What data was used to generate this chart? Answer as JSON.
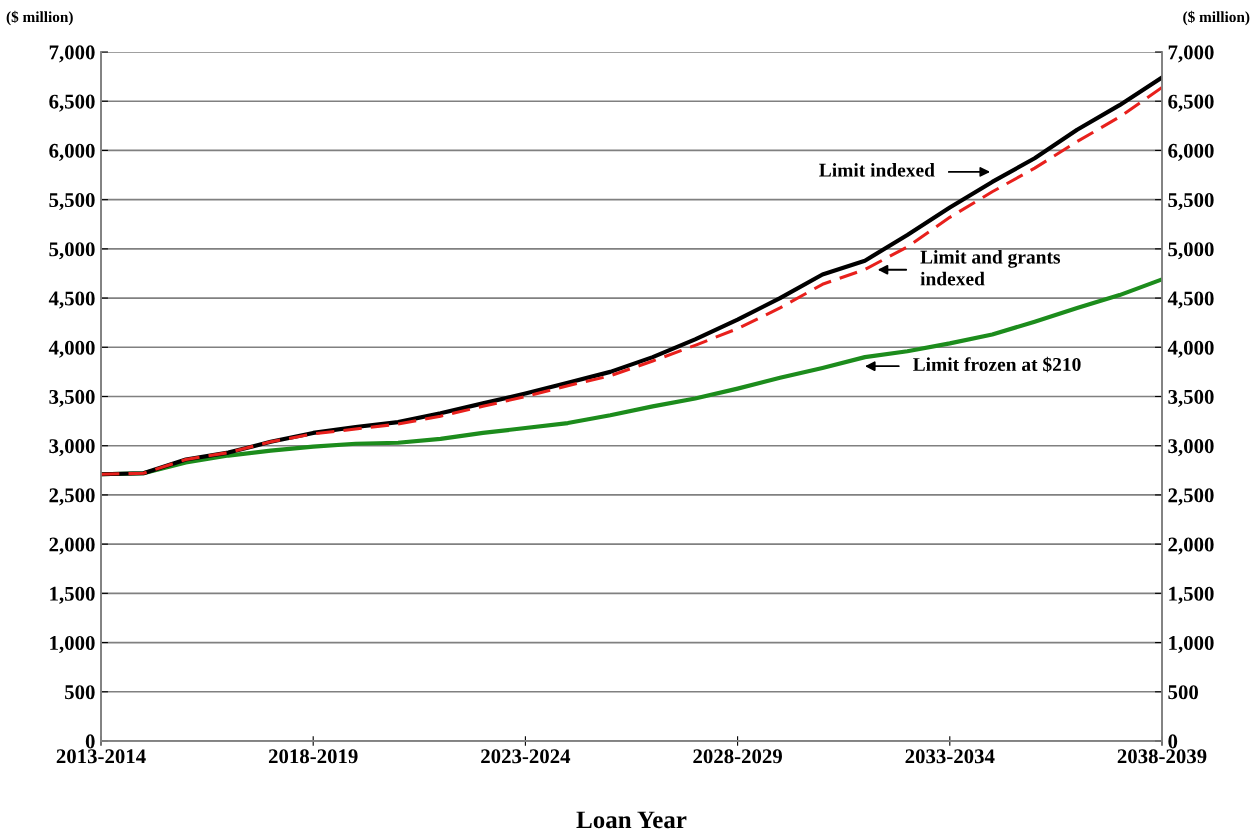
{
  "chart_data": {
    "type": "line",
    "xlabel": "Loan Year",
    "ylabel": "($ million)",
    "y2label": "($ million)",
    "categories": [
      "2013-2014",
      null,
      null,
      null,
      null,
      "2018-2019",
      null,
      null,
      null,
      null,
      "2023-2024",
      null,
      null,
      null,
      null,
      "2028-2029",
      null,
      null,
      null,
      null,
      "2033-2034",
      null,
      null,
      null,
      null,
      "2038-2039"
    ],
    "series": [
      {
        "color": "#1c8c1c",
        "line_style": "solid",
        "values": [
          2710,
          2720,
          2830,
          2900,
          2950,
          2990,
          3020,
          3030,
          3070,
          3130,
          3180,
          3230,
          3310,
          3400,
          3480,
          3580,
          3690,
          3790,
          3900,
          3960,
          4040,
          4130,
          4260,
          4400,
          4530,
          4690
        ]
      },
      {
        "color": "#000000",
        "line_style": "solid",
        "values": [
          2710,
          2720,
          2860,
          2930,
          3040,
          3130,
          3190,
          3240,
          3330,
          3430,
          3530,
          3640,
          3750,
          3900,
          4080,
          4280,
          4500,
          4740,
          4880,
          5140,
          5420,
          5680,
          5920,
          6210,
          6460,
          6740
        ]
      },
      {
        "color": "#e8201c",
        "line_style": "dashed",
        "values": [
          2710,
          2720,
          2860,
          2930,
          3040,
          3120,
          3170,
          3220,
          3300,
          3400,
          3500,
          3610,
          3710,
          3860,
          4020,
          4190,
          4400,
          4640,
          4790,
          5020,
          5320,
          5580,
          5820,
          6090,
          6340,
          6640
        ]
      }
    ],
    "ylim": [
      0,
      7000
    ],
    "yticks": [
      0,
      500,
      {
        "value": 1000,
        "label": "1,000"
      },
      {
        "value": 1500,
        "label": "1,500"
      },
      {
        "value": 2000,
        "label": "2,000"
      },
      {
        "value": 2500,
        "label": "2,500"
      },
      {
        "value": 3000,
        "label": "3,000"
      },
      {
        "value": 3500,
        "label": "3,500"
      },
      {
        "value": 4000,
        "label": "4,000"
      },
      {
        "value": 4500,
        "label": "4,500"
      },
      {
        "value": 5000,
        "label": "5,000"
      },
      {
        "value": 5500,
        "label": "5,500"
      },
      {
        "value": 6000,
        "label": "6,000"
      },
      {
        "value": 6500,
        "label": "6,500"
      },
      {
        "value": 7000,
        "label": "7,000"
      }
    ],
    "y2lim": [
      0,
      7000
    ],
    "y2ticks": [
      0,
      500,
      {
        "value": 1000,
        "label": "1,000"
      },
      {
        "value": 1500,
        "label": "1,500"
      },
      {
        "value": 2000,
        "label": "2,000"
      },
      {
        "value": 2500,
        "label": "2,500"
      },
      {
        "value": 3000,
        "label": "3,000"
      },
      {
        "value": 3500,
        "label": "3,500"
      },
      {
        "value": 4000,
        "label": "4,000"
      },
      {
        "value": 4500,
        "label": "4,500"
      },
      {
        "value": 5000,
        "label": "5,000"
      },
      {
        "value": 5500,
        "label": "5,500"
      },
      {
        "value": 6000,
        "label": "6,000"
      },
      {
        "value": 6500,
        "label": "6,500"
      },
      {
        "value": 7000,
        "label": "7,000"
      }
    ],
    "grid": "y",
    "annotations": [
      "Limit indexed",
      "Limit and grants\nindexed",
      "Limit frozen at $210"
    ]
  }
}
